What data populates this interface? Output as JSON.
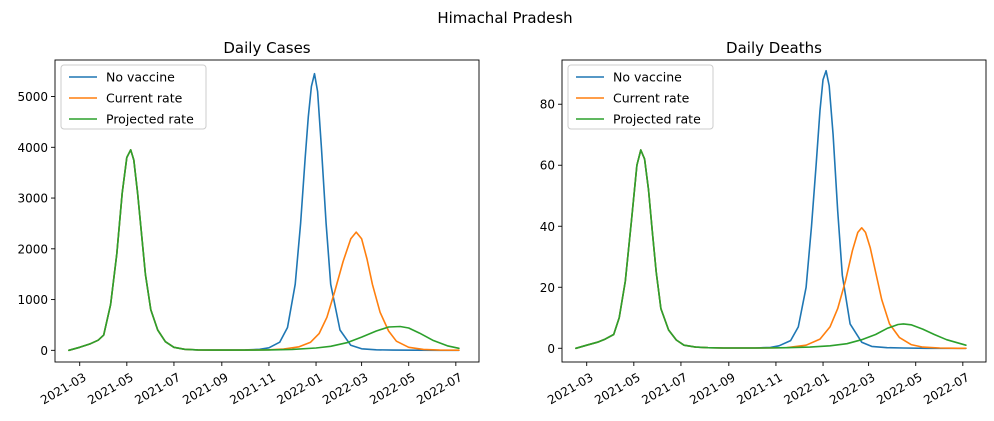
{
  "figure": {
    "suptitle": "Himachal Pradesh"
  },
  "colors": {
    "no_vaccine": "#1f77b4",
    "current_rate": "#ff7f0e",
    "projected_rate": "#2ca02c"
  },
  "chart_data": [
    {
      "type": "line",
      "title": "Daily Cases",
      "xlabel": "",
      "ylabel": "",
      "x_type": "date",
      "xlim": [
        "2021-01-28",
        "2022-07-31"
      ],
      "ylim": [
        -230,
        5720
      ],
      "xticks": [
        "2021-03-01",
        "2021-05-01",
        "2021-07-01",
        "2021-09-01",
        "2021-11-01",
        "2022-01-01",
        "2022-03-01",
        "2022-05-01",
        "2022-07-01"
      ],
      "xtick_labels": [
        "2021-03",
        "2021-05",
        "2021-07",
        "2021-09",
        "2021-11",
        "2022-01",
        "2022-03",
        "2022-05",
        "2022-07"
      ],
      "yticks": [
        0,
        1000,
        2000,
        3000,
        4000,
        5000
      ],
      "ytick_labels": [
        "0",
        "1000",
        "2000",
        "3000",
        "4000",
        "5000"
      ],
      "legend": "top-left",
      "grid": false,
      "series": [
        {
          "name": "No vaccine",
          "color": "#1f77b4",
          "x": [
            "2021-02-15",
            "2021-03-01",
            "2021-03-15",
            "2021-03-25",
            "2021-04-01",
            "2021-04-10",
            "2021-04-18",
            "2021-04-25",
            "2021-05-01",
            "2021-05-06",
            "2021-05-10",
            "2021-05-15",
            "2021-05-20",
            "2021-05-25",
            "2021-06-01",
            "2021-06-10",
            "2021-06-20",
            "2021-07-01",
            "2021-07-15",
            "2021-08-01",
            "2021-08-20",
            "2021-09-10",
            "2021-10-01",
            "2021-10-20",
            "2021-11-01",
            "2021-11-15",
            "2021-11-25",
            "2021-12-05",
            "2021-12-12",
            "2021-12-18",
            "2021-12-22",
            "2021-12-26",
            "2021-12-30",
            "2022-01-03",
            "2022-01-08",
            "2022-01-14",
            "2022-01-20",
            "2022-02-01",
            "2022-02-15",
            "2022-03-01",
            "2022-03-20",
            "2022-04-10",
            "2022-05-10",
            "2022-06-10",
            "2022-07-05"
          ],
          "y": [
            0,
            60,
            130,
            200,
            300,
            900,
            1900,
            3100,
            3800,
            3950,
            3750,
            3100,
            2300,
            1500,
            800,
            400,
            170,
            60,
            20,
            8,
            5,
            5,
            8,
            20,
            50,
            160,
            450,
            1300,
            2500,
            3800,
            4600,
            5200,
            5450,
            5100,
            4000,
            2500,
            1300,
            400,
            100,
            30,
            10,
            5,
            2,
            1,
            0
          ]
        },
        {
          "name": "Current rate",
          "color": "#ff7f0e",
          "x": [
            "2021-02-15",
            "2021-03-01",
            "2021-03-15",
            "2021-03-25",
            "2021-04-01",
            "2021-04-10",
            "2021-04-18",
            "2021-04-25",
            "2021-05-01",
            "2021-05-06",
            "2021-05-10",
            "2021-05-15",
            "2021-05-20",
            "2021-05-25",
            "2021-06-01",
            "2021-06-10",
            "2021-06-20",
            "2021-07-01",
            "2021-07-15",
            "2021-08-01",
            "2021-08-20",
            "2021-09-10",
            "2021-10-01",
            "2021-11-01",
            "2021-11-20",
            "2021-12-10",
            "2021-12-25",
            "2022-01-05",
            "2022-01-15",
            "2022-01-25",
            "2022-02-05",
            "2022-02-15",
            "2022-02-22",
            "2022-03-01",
            "2022-03-08",
            "2022-03-15",
            "2022-03-25",
            "2022-04-05",
            "2022-04-15",
            "2022-05-01",
            "2022-05-20",
            "2022-06-10",
            "2022-07-05"
          ],
          "y": [
            0,
            60,
            130,
            200,
            300,
            900,
            1900,
            3100,
            3800,
            3950,
            3750,
            3100,
            2300,
            1500,
            800,
            400,
            170,
            60,
            20,
            8,
            5,
            5,
            5,
            10,
            25,
            70,
            160,
            330,
            650,
            1150,
            1750,
            2200,
            2330,
            2200,
            1800,
            1300,
            750,
            380,
            180,
            60,
            18,
            5,
            2
          ]
        },
        {
          "name": "Projected rate",
          "color": "#2ca02c",
          "x": [
            "2021-02-15",
            "2021-03-01",
            "2021-03-15",
            "2021-03-25",
            "2021-04-01",
            "2021-04-10",
            "2021-04-18",
            "2021-04-25",
            "2021-05-01",
            "2021-05-06",
            "2021-05-10",
            "2021-05-15",
            "2021-05-20",
            "2021-05-25",
            "2021-06-01",
            "2021-06-10",
            "2021-06-20",
            "2021-07-01",
            "2021-07-15",
            "2021-08-01",
            "2021-08-20",
            "2021-09-10",
            "2021-10-01",
            "2021-11-01",
            "2021-12-01",
            "2022-01-01",
            "2022-01-20",
            "2022-02-10",
            "2022-03-01",
            "2022-03-20",
            "2022-04-05",
            "2022-04-20",
            "2022-05-01",
            "2022-05-15",
            "2022-06-01",
            "2022-06-20",
            "2022-07-05"
          ],
          "y": [
            0,
            60,
            130,
            200,
            300,
            900,
            1900,
            3100,
            3800,
            3950,
            3750,
            3100,
            2300,
            1500,
            800,
            400,
            170,
            60,
            20,
            8,
            5,
            5,
            5,
            8,
            18,
            45,
            80,
            150,
            260,
            380,
            460,
            470,
            440,
            340,
            200,
            90,
            40
          ]
        }
      ]
    },
    {
      "type": "line",
      "title": "Daily Deaths",
      "xlabel": "",
      "ylabel": "",
      "x_type": "date",
      "xlim": [
        "2021-01-28",
        "2022-07-31"
      ],
      "ylim": [
        -4.5,
        94.5
      ],
      "xticks": [
        "2021-03-01",
        "2021-05-01",
        "2021-07-01",
        "2021-09-01",
        "2021-11-01",
        "2022-01-01",
        "2022-03-01",
        "2022-05-01",
        "2022-07-01"
      ],
      "xtick_labels": [
        "2021-03",
        "2021-05",
        "2021-07",
        "2021-09",
        "2021-11",
        "2022-01",
        "2022-03",
        "2022-05",
        "2022-07"
      ],
      "yticks": [
        0,
        20,
        40,
        60,
        80
      ],
      "ytick_labels": [
        "0",
        "20",
        "40",
        "60",
        "80"
      ],
      "legend": "top-left",
      "grid": false,
      "series": [
        {
          "name": "No vaccine",
          "color": "#1f77b4",
          "x": [
            "2021-02-15",
            "2021-03-01",
            "2021-03-15",
            "2021-03-25",
            "2021-04-05",
            "2021-04-12",
            "2021-04-20",
            "2021-04-28",
            "2021-05-05",
            "2021-05-10",
            "2021-05-15",
            "2021-05-20",
            "2021-05-25",
            "2021-05-30",
            "2021-06-05",
            "2021-06-15",
            "2021-06-25",
            "2021-07-05",
            "2021-07-20",
            "2021-08-05",
            "2021-08-25",
            "2021-09-15",
            "2021-10-05",
            "2021-10-25",
            "2021-11-05",
            "2021-11-20",
            "2021-11-30",
            "2021-12-10",
            "2021-12-17",
            "2021-12-23",
            "2021-12-28",
            "2022-01-01",
            "2022-01-05",
            "2022-01-09",
            "2022-01-14",
            "2022-01-20",
            "2022-01-26",
            "2022-02-05",
            "2022-02-20",
            "2022-03-05",
            "2022-03-25",
            "2022-04-15",
            "2022-05-15",
            "2022-06-15",
            "2022-07-05"
          ],
          "y": [
            0,
            1,
            2,
            3,
            4.5,
            10,
            22,
            42,
            60,
            65,
            62,
            52,
            38,
            25,
            13,
            6,
            2.7,
            1,
            0.4,
            0.2,
            0.1,
            0.1,
            0.1,
            0.3,
            0.8,
            2.5,
            7,
            20,
            40,
            60,
            78,
            88,
            91,
            86,
            70,
            45,
            24,
            8,
            2,
            0.6,
            0.2,
            0.1,
            0,
            0,
            0
          ]
        },
        {
          "name": "Current rate",
          "color": "#ff7f0e",
          "x": [
            "2021-02-15",
            "2021-03-01",
            "2021-03-15",
            "2021-03-25",
            "2021-04-05",
            "2021-04-12",
            "2021-04-20",
            "2021-04-28",
            "2021-05-05",
            "2021-05-10",
            "2021-05-15",
            "2021-05-20",
            "2021-05-25",
            "2021-05-30",
            "2021-06-05",
            "2021-06-15",
            "2021-06-25",
            "2021-07-05",
            "2021-07-20",
            "2021-08-05",
            "2021-08-25",
            "2021-09-15",
            "2021-10-15",
            "2021-11-15",
            "2021-12-10",
            "2021-12-28",
            "2022-01-10",
            "2022-01-20",
            "2022-01-30",
            "2022-02-08",
            "2022-02-15",
            "2022-02-20",
            "2022-02-25",
            "2022-03-03",
            "2022-03-10",
            "2022-03-18",
            "2022-03-28",
            "2022-04-10",
            "2022-04-25",
            "2022-05-10",
            "2022-06-01",
            "2022-06-25",
            "2022-07-05"
          ],
          "y": [
            0,
            1,
            2,
            3,
            4.5,
            10,
            22,
            42,
            60,
            65,
            62,
            52,
            38,
            25,
            13,
            6,
            2.7,
            1,
            0.4,
            0.2,
            0.1,
            0.1,
            0.1,
            0.2,
            1,
            3,
            7,
            13,
            22,
            32,
            38,
            39.5,
            38,
            33,
            25,
            16,
            8,
            3.5,
            1.2,
            0.4,
            0.1,
            0,
            0
          ]
        },
        {
          "name": "Projected rate",
          "color": "#2ca02c",
          "x": [
            "2021-02-15",
            "2021-03-01",
            "2021-03-15",
            "2021-03-25",
            "2021-04-05",
            "2021-04-12",
            "2021-04-20",
            "2021-04-28",
            "2021-05-05",
            "2021-05-10",
            "2021-05-15",
            "2021-05-20",
            "2021-05-25",
            "2021-05-30",
            "2021-06-05",
            "2021-06-15",
            "2021-06-25",
            "2021-07-05",
            "2021-07-20",
            "2021-08-05",
            "2021-08-25",
            "2021-09-15",
            "2021-10-15",
            "2021-11-15",
            "2021-12-15",
            "2022-01-10",
            "2022-02-01",
            "2022-02-20",
            "2022-03-10",
            "2022-03-25",
            "2022-04-08",
            "2022-04-15",
            "2022-04-25",
            "2022-05-10",
            "2022-05-25",
            "2022-06-10",
            "2022-07-05"
          ],
          "y": [
            0,
            1,
            2,
            3,
            4.5,
            10,
            22,
            42,
            60,
            65,
            62,
            52,
            38,
            25,
            13,
            6,
            2.7,
            1,
            0.4,
            0.2,
            0.1,
            0.1,
            0.1,
            0.2,
            0.4,
            0.8,
            1.5,
            2.8,
            4.5,
            6.5,
            7.8,
            8,
            7.7,
            6.3,
            4.5,
            2.8,
            1
          ]
        }
      ]
    }
  ]
}
